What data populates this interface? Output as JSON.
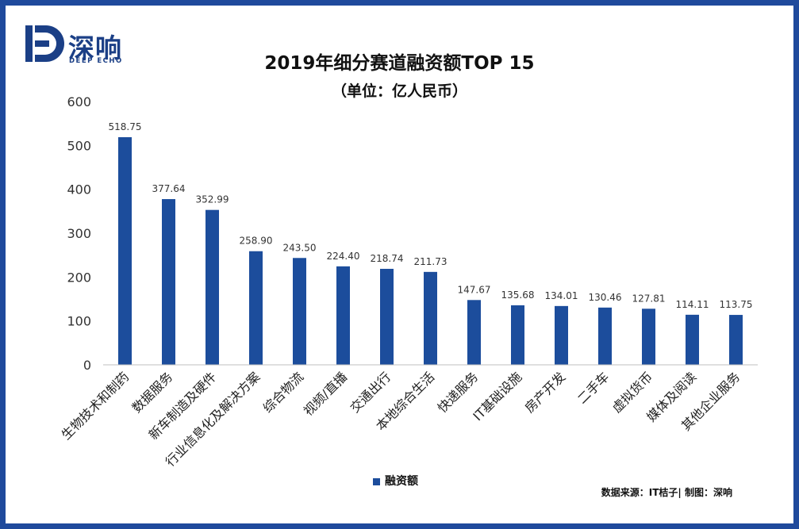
{
  "logo": {
    "name_cn": "深响",
    "name_en": "DEEP ECHO"
  },
  "chart_data": {
    "type": "bar",
    "title": "2019年细分赛道融资额TOP 15",
    "subtitle": "（单位：亿人民币）",
    "categories": [
      "生物技术和制药",
      "数据服务",
      "新车制造及硬件",
      "行业信息化及解决方案",
      "综合物流",
      "视频/直播",
      "交通出行",
      "本地综合生活",
      "快递服务",
      "IT基础设施",
      "房产开发",
      "二手车",
      "虚拟货币",
      "媒体及阅读",
      "其他企业服务"
    ],
    "series": [
      {
        "name": "融资额",
        "values": [
          518.75,
          377.64,
          352.99,
          258.9,
          243.5,
          224.4,
          218.74,
          211.73,
          147.67,
          135.68,
          134.01,
          130.46,
          127.81,
          114.11,
          113.75
        ],
        "labels": [
          "518.75",
          "377.64",
          "352.99",
          "258.90",
          "243.50",
          "224.40",
          "218.74",
          "211.73",
          "147.67",
          "135.68",
          "134.01",
          "130.46",
          "127.81",
          "114.11",
          "113.75"
        ],
        "color": "#1c4d9c"
      }
    ],
    "ylim": [
      0,
      600
    ],
    "yticks": [
      "0",
      "100",
      "200",
      "300",
      "400",
      "500",
      "600"
    ],
    "grid": false,
    "legend_position": "bottom-center"
  },
  "source_note": "数据来源：IT桔子| 制图：深响"
}
